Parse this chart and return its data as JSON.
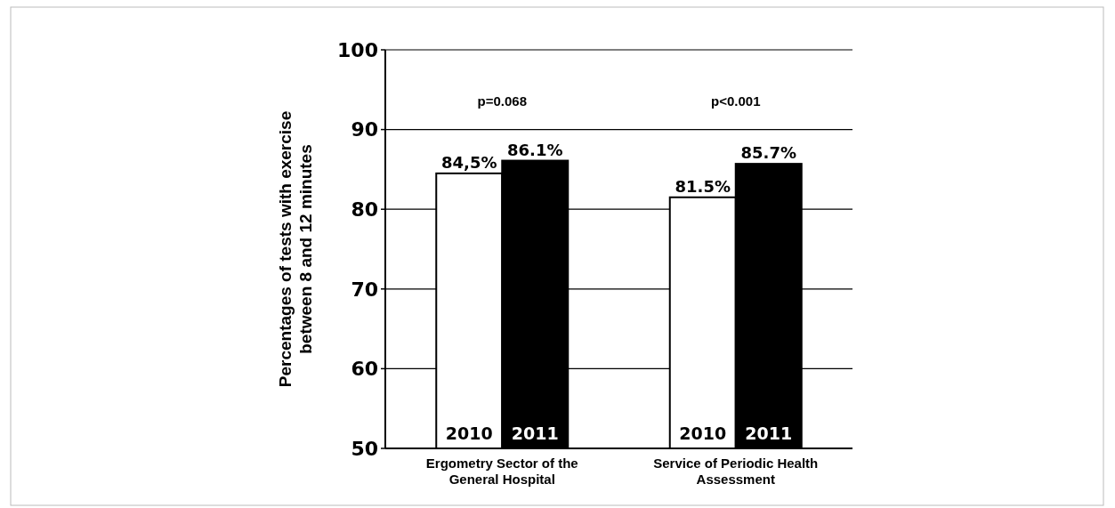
{
  "chart_data": {
    "type": "bar",
    "ylabel": "Percentages of tests with exercise between 8 and 12 minutes",
    "categories": [
      "Ergometry Sector of the General Hospital",
      "Service of Periodic Health Assessment"
    ],
    "series": [
      {
        "name": "2010",
        "color": "#ffffff",
        "values": [
          84.5,
          81.5
        ],
        "value_labels": [
          "84,5%",
          "81.5%"
        ]
      },
      {
        "name": "2011",
        "color": "#000000",
        "values": [
          86.1,
          85.7
        ],
        "value_labels": [
          "86.1%",
          "85.7%"
        ]
      }
    ],
    "ylim": [
      50,
      100
    ],
    "yticks": [
      50,
      60,
      70,
      80,
      90,
      100
    ],
    "grid": "y",
    "annotations": [
      "p=0.068",
      "p<0.001"
    ]
  }
}
